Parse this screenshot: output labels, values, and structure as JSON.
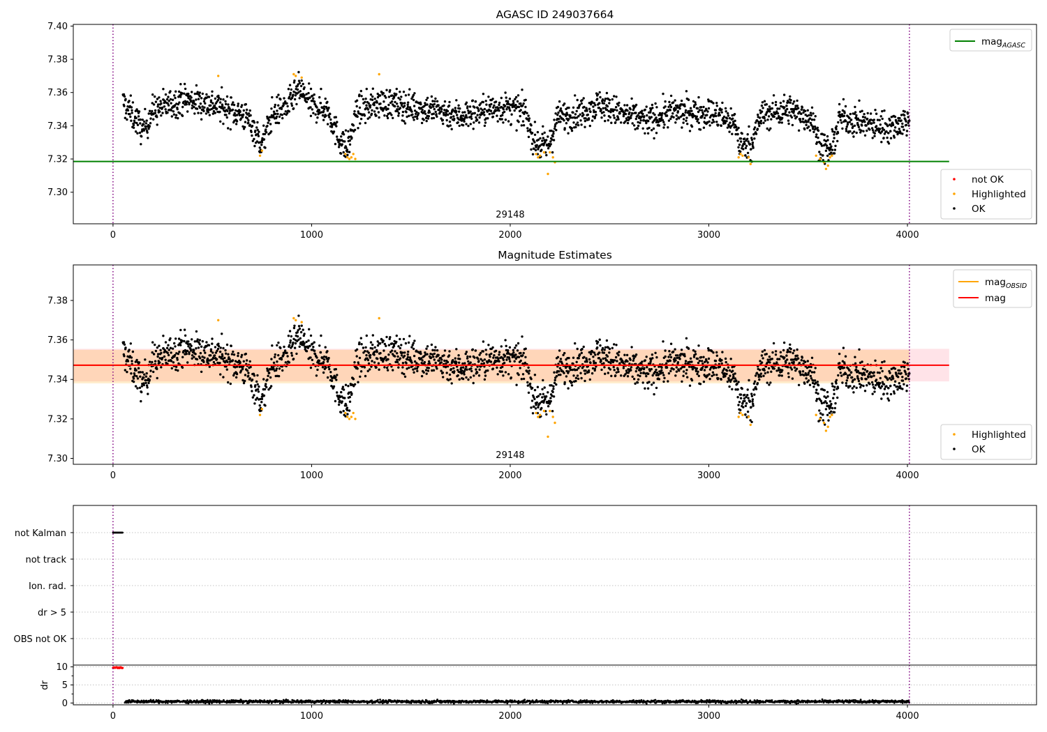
{
  "chart_data": [
    {
      "type": "scatter",
      "title": "AGASC ID 249037664",
      "xlim": [
        -200,
        4650
      ],
      "ylim": [
        7.281,
        7.401
      ],
      "xticks": [
        0,
        1000,
        2000,
        3000,
        4000
      ],
      "yticks": [
        7.3,
        7.32,
        7.34,
        7.36,
        7.38,
        7.4
      ],
      "obsid_label": "29148",
      "obsid_label_x": 2000,
      "vlines": [
        0,
        4010
      ],
      "hlines": [
        {
          "name": "mag_AGASC",
          "y": 7.3185,
          "x": [
            -200,
            4210
          ],
          "color": "#008000"
        }
      ],
      "legend_lines": [
        {
          "base": "mag",
          "sub": "AGASC",
          "color": "#008000"
        }
      ],
      "legend_markers": [
        {
          "label": "not OK",
          "color": "#ff0000"
        },
        {
          "label": "Highlighted",
          "color": "#ffa500"
        },
        {
          "label": "OK",
          "color": "#000000"
        }
      ],
      "series": [
        {
          "name": "OK",
          "color": "#000000",
          "profile": [
            [
              50,
              7.354
            ],
            [
              120,
              7.343
            ],
            [
              150,
              7.337
            ],
            [
              200,
              7.349
            ],
            [
              350,
              7.356
            ],
            [
              500,
              7.353
            ],
            [
              650,
              7.347
            ],
            [
              700,
              7.341
            ],
            [
              750,
              7.328
            ],
            [
              800,
              7.347
            ],
            [
              880,
              7.352
            ],
            [
              940,
              7.362
            ],
            [
              1000,
              7.352
            ],
            [
              1080,
              7.35
            ],
            [
              1130,
              7.334
            ],
            [
              1180,
              7.326
            ],
            [
              1230,
              7.349
            ],
            [
              1350,
              7.354
            ],
            [
              1600,
              7.35
            ],
            [
              1750,
              7.346
            ],
            [
              1950,
              7.351
            ],
            [
              2080,
              7.348
            ],
            [
              2120,
              7.33
            ],
            [
              2190,
              7.327
            ],
            [
              2240,
              7.345
            ],
            [
              2350,
              7.348
            ],
            [
              2450,
              7.353
            ],
            [
              2580,
              7.346
            ],
            [
              2700,
              7.343
            ],
            [
              2800,
              7.348
            ],
            [
              3000,
              7.348
            ],
            [
              3130,
              7.342
            ],
            [
              3160,
              7.328
            ],
            [
              3220,
              7.33
            ],
            [
              3260,
              7.346
            ],
            [
              3400,
              7.35
            ],
            [
              3520,
              7.344
            ],
            [
              3560,
              7.328
            ],
            [
              3620,
              7.325
            ],
            [
              3660,
              7.345
            ],
            [
              3800,
              7.341
            ],
            [
              3900,
              7.339
            ],
            [
              4000,
              7.343
            ]
          ],
          "x_range": [
            50,
            4010
          ],
          "spread": 0.0045,
          "count": 2300
        },
        {
          "name": "Highlighted",
          "color": "#ffa500",
          "points": [
            [
              530,
              7.37
            ],
            [
              740,
              7.322
            ],
            [
              750,
              7.325
            ],
            [
              910,
              7.371
            ],
            [
              920,
              7.37
            ],
            [
              950,
              7.369
            ],
            [
              1170,
              7.323
            ],
            [
              1180,
              7.321
            ],
            [
              1190,
              7.32
            ],
            [
              1200,
              7.321
            ],
            [
              1210,
              7.323
            ],
            [
              1220,
              7.32
            ],
            [
              1340,
              7.371
            ],
            [
              2130,
              7.323
            ],
            [
              2140,
              7.321
            ],
            [
              2150,
              7.322
            ],
            [
              2170,
              7.324
            ],
            [
              2190,
              7.311
            ],
            [
              2200,
              7.324
            ],
            [
              2215,
              7.321
            ],
            [
              2225,
              7.318
            ],
            [
              3150,
              7.321
            ],
            [
              3160,
              7.323
            ],
            [
              3170,
              7.322
            ],
            [
              3200,
              7.321
            ],
            [
              3210,
              7.317
            ],
            [
              3540,
              7.322
            ],
            [
              3560,
              7.32
            ],
            [
              3580,
              7.318
            ],
            [
              3590,
              7.314
            ],
            [
              3600,
              7.316
            ],
            [
              3610,
              7.321
            ],
            [
              3620,
              7.322
            ]
          ]
        }
      ]
    },
    {
      "type": "scatter",
      "title": "Magnitude Estimates",
      "xlim": [
        -200,
        4650
      ],
      "ylim": [
        7.297,
        7.398
      ],
      "xticks": [
        0,
        1000,
        2000,
        3000,
        4000
      ],
      "yticks": [
        7.3,
        7.32,
        7.34,
        7.36,
        7.38
      ],
      "obsid_label": "29148",
      "obsid_label_x": 2000,
      "vlines": [
        0,
        4010
      ],
      "bands": [
        {
          "name": "mag band",
          "y": [
            7.339,
            7.3555
          ],
          "x": [
            -200,
            4210
          ],
          "color": "#ffc0cb",
          "opacity": 0.45
        },
        {
          "name": "mag_OBSID band",
          "y": [
            7.338,
            7.355
          ],
          "x": [
            -200,
            4010
          ],
          "color": "#ffa500",
          "opacity": 0.2
        }
      ],
      "hlines": [
        {
          "name": "mag_OBSID",
          "y": 7.3472,
          "x": [
            -200,
            4010
          ],
          "color": "#ffa500"
        },
        {
          "name": "mag",
          "y": 7.3472,
          "x": [
            -200,
            4210
          ],
          "color": "#ff0000"
        }
      ],
      "legend_lines": [
        {
          "base": "mag",
          "sub": "OBSID",
          "color": "#ffa500"
        },
        {
          "base": "mag",
          "sub": "",
          "color": "#ff0000"
        }
      ],
      "legend_markers": [
        {
          "label": "Highlighted",
          "color": "#ffa500"
        },
        {
          "label": "OK",
          "color": "#000000"
        }
      ],
      "series_ref": "same as AGASC ID 249037664 panel"
    },
    {
      "type": "event-flags",
      "xlim": [
        -200,
        4650
      ],
      "xticks": [
        0,
        1000,
        2000,
        3000,
        4000
      ],
      "vlines": [
        0,
        4010
      ],
      "flags": [
        "not Kalman",
        "not track",
        "Ion. rad.",
        "dr > 5",
        "OBS not OK"
      ],
      "flag_events": [
        {
          "flag": "not Kalman",
          "x": [
            0,
            50
          ]
        }
      ]
    },
    {
      "type": "scatter",
      "ylabel": "dr",
      "xlim": [
        -200,
        4650
      ],
      "ylim": [
        -0.5,
        10.5
      ],
      "yticks": [
        0,
        5,
        10
      ],
      "xticks": [
        0,
        1000,
        2000,
        3000,
        4000
      ],
      "vlines": [
        0,
        4010
      ],
      "series": [
        {
          "name": "dr > 5",
          "color": "#ff0000",
          "x_range": [
            0,
            50
          ],
          "y": 9.8
        },
        {
          "name": "dr",
          "color": "#000000",
          "x_range": [
            60,
            4010
          ],
          "y": 0.4,
          "spread": 0.2
        }
      ]
    }
  ]
}
